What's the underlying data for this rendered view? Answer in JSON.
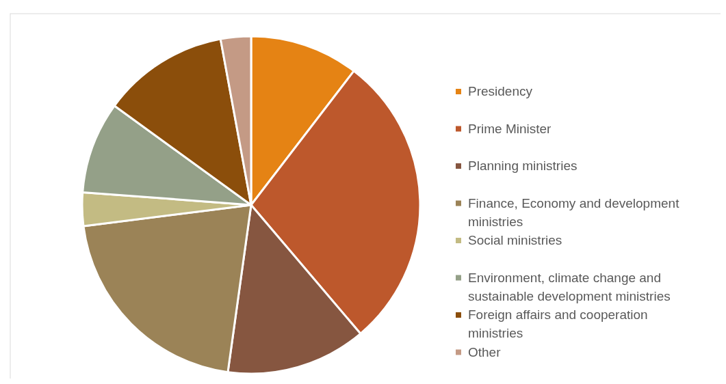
{
  "chart_data": {
    "type": "pie",
    "categories": [
      "Presidency",
      "Prime Minister",
      "Planning ministries",
      "Finance, Economy and development ministries",
      "Social ministries",
      "Environment, climate change and sustainable development ministries",
      "Foreign affairs and cooperation ministries",
      "Other"
    ],
    "values": [
      10.4,
      28.4,
      13.4,
      20.8,
      3.2,
      8.8,
      12.1,
      2.9
    ],
    "colors": [
      "#e58314",
      "#bd582c",
      "#865640",
      "#9b8357",
      "#c3bb83",
      "#94a088",
      "#8b4e0b",
      "#c49a85"
    ],
    "legend": "right"
  }
}
